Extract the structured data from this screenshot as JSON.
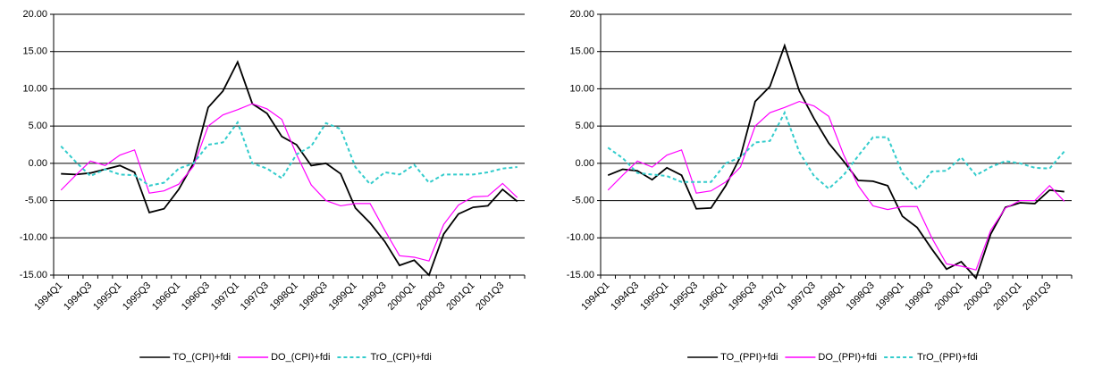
{
  "chart_data": [
    {
      "type": "line",
      "categories": [
        "1994Q1",
        null,
        "1994Q3",
        null,
        "1995Q1",
        null,
        "1995Q3",
        null,
        "1996Q1",
        null,
        "1996Q3",
        null,
        "1997Q1",
        null,
        "1997Q3",
        null,
        "1998Q1",
        null,
        "1998Q3",
        null,
        "1999Q1",
        null,
        "1999Q3",
        null,
        "2000Q1",
        null,
        "2000Q3",
        null,
        "2001Q1",
        null,
        "2001Q3",
        null
      ],
      "ylim": [
        -15,
        20
      ],
      "yticks": [
        {
          "value": -15,
          "label": "-15.00"
        },
        {
          "value": -10,
          "label": "-10.00"
        },
        {
          "value": -5,
          "label": "-5.00"
        },
        {
          "value": 0,
          "label": "0.00"
        },
        {
          "value": 5,
          "label": "5.00"
        },
        {
          "value": 10,
          "label": "10.00"
        },
        {
          "value": 15,
          "label": "15.00"
        },
        {
          "value": 20,
          "label": "20.00"
        }
      ],
      "grid": true,
      "legend": "bottom",
      "series": [
        {
          "name": "TO_(CPI)+fdi",
          "color": "#000000",
          "dashed": false,
          "values": [
            -1.4,
            -1.5,
            -1.3,
            -0.8,
            -0.3,
            -1.2,
            -6.6,
            -6.1,
            -3.5,
            0,
            7.5,
            9.7,
            13.6,
            8,
            6.7,
            3.6,
            2.5,
            -0.3,
            0,
            -1.4,
            -6,
            -8,
            -10.5,
            -13.7,
            -13,
            -15,
            -9.5,
            -6.8,
            -5.9,
            -5.7,
            -3.5,
            -5.1
          ]
        },
        {
          "name": "DO_(CPI)+fdi",
          "color": "#ff00ff",
          "dashed": false,
          "values": [
            -3.6,
            -1.6,
            0.3,
            -0.3,
            1.1,
            1.8,
            -4,
            -3.7,
            -2.8,
            -0.4,
            5,
            6.5,
            7.2,
            8,
            7.3,
            5.9,
            1.2,
            -2.9,
            -5,
            -5.7,
            -5.4,
            -5.4,
            -9,
            -12.4,
            -12.6,
            -13.1,
            -8.2,
            -5.6,
            -4.5,
            -4.4,
            -2.7,
            -4.6
          ]
        },
        {
          "name": "TrO_(CPI)+fdi",
          "color": "#33cccc",
          "dashed": true,
          "values": [
            2.3,
            0.2,
            -1.7,
            -0.8,
            -1.5,
            -1.6,
            -3,
            -2.6,
            -0.7,
            0,
            2.5,
            2.8,
            5.5,
            0,
            -0.7,
            -2,
            1.2,
            2.3,
            5.4,
            4.6,
            -0.5,
            -2.8,
            -1.2,
            -1.5,
            -0.2,
            -2.6,
            -1.5,
            -1.5,
            -1.5,
            -1.2,
            -0.7,
            -0.5
          ]
        }
      ]
    },
    {
      "type": "line",
      "categories": [
        "1994Q1",
        null,
        "1994Q3",
        null,
        "1995Q1",
        null,
        "1995Q3",
        null,
        "1996Q1",
        null,
        "1996Q3",
        null,
        "1997Q1",
        null,
        "1997Q3",
        null,
        "1998Q1",
        null,
        "1998Q3",
        null,
        "1999Q1",
        null,
        "1999Q3",
        null,
        "2000Q1",
        null,
        "2000Q3",
        null,
        "2001Q1",
        null,
        "2001Q3",
        null
      ],
      "ylim": [
        -15,
        20
      ],
      "yticks": [
        {
          "value": -15,
          "label": "-15.00"
        },
        {
          "value": -10,
          "label": "-10.00"
        },
        {
          "value": -5,
          "label": "-5.00"
        },
        {
          "value": 0,
          "label": "0.00"
        },
        {
          "value": 5,
          "label": "5.00"
        },
        {
          "value": 10,
          "label": "10.00"
        },
        {
          "value": 15,
          "label": "15.00"
        },
        {
          "value": 20,
          "label": "20.00"
        }
      ],
      "grid": true,
      "legend": "bottom",
      "series": [
        {
          "name": "TO_(PPI)+fdi",
          "color": "#000000",
          "dashed": false,
          "values": [
            -1.6,
            -0.8,
            -1,
            -2.2,
            -0.6,
            -1.6,
            -6.1,
            -6,
            -3,
            0.9,
            8.3,
            10.3,
            15.8,
            9.7,
            6,
            2.7,
            0.3,
            -2.3,
            -2.4,
            -3,
            -7.1,
            -8.6,
            -11.5,
            -14.2,
            -13.2,
            -15.4,
            -9.5,
            -5.9,
            -5.3,
            -5.4,
            -3.6,
            -3.8
          ]
        },
        {
          "name": "DO_(PPI)+fdi",
          "color": "#ff00ff",
          "dashed": false,
          "values": [
            -3.6,
            -1.6,
            0.3,
            -0.5,
            1.1,
            1.8,
            -4,
            -3.7,
            -2.5,
            -0.5,
            5,
            6.8,
            7.5,
            8.3,
            7.7,
            6.3,
            1.2,
            -3,
            -5.7,
            -6.2,
            -5.8,
            -5.8,
            -10,
            -13.5,
            -13.8,
            -14.3,
            -9,
            -6,
            -5,
            -5,
            -3,
            -5.1
          ]
        },
        {
          "name": "TrO_(PPI)+fdi",
          "color": "#33cccc",
          "dashed": true,
          "values": [
            2.1,
            0.7,
            -1.3,
            -1.5,
            -1.7,
            -2.5,
            -2.5,
            -2.5,
            0,
            0.8,
            2.8,
            3,
            6.8,
            1.5,
            -1.7,
            -3.4,
            -1.6,
            1,
            3.5,
            3.5,
            -1.3,
            -3.5,
            -1.1,
            -1,
            0.8,
            -1.6,
            -0.5,
            0.3,
            0,
            -0.6,
            -0.7,
            1.6
          ]
        }
      ]
    }
  ]
}
